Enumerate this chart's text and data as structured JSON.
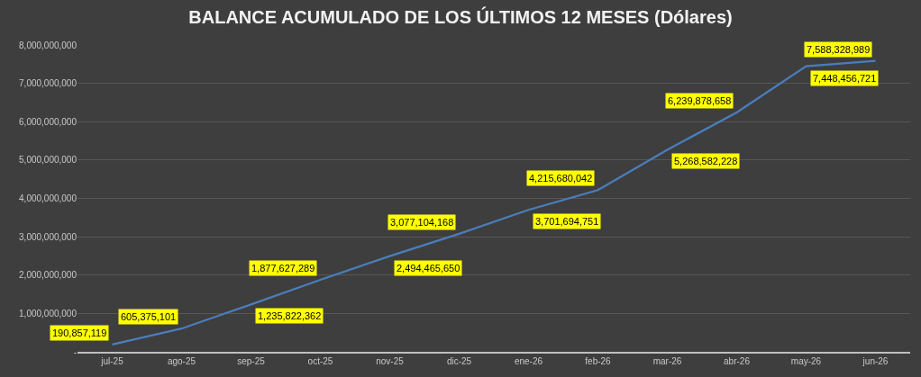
{
  "chart_data": {
    "type": "line",
    "title": "BALANCE ACUMULADO DE LOS ÚLTIMOS 12 MESES (Dólares)",
    "categories": [
      "jul-25",
      "ago-25",
      "sep-25",
      "oct-25",
      "nov-25",
      "dic-25",
      "ene-26",
      "feb-26",
      "mar-26",
      "abr-26",
      "may-26",
      "jun-26"
    ],
    "series": [
      {
        "color": "#4a7ebb",
        "values": [
          190857119,
          605375101,
          1235822362,
          1877627289,
          2494465650,
          3077104168,
          3701694751,
          4215680042,
          5268582228,
          6239878658,
          7448456721,
          7588328989
        ],
        "value_labels": [
          "190,857,119",
          "605,375,101",
          "1,235,822,362",
          "1,877,627,289",
          "2,494,465,650",
          "3,077,104,168",
          "3,701,694,751",
          "4,215,680,042",
          "5,268,582,228",
          "6,239,878,658",
          "7,448,456,721",
          "7,588,328,989"
        ]
      }
    ],
    "ylim": [
      0,
      8000000000
    ],
    "yticks": [
      {
        "value": 0,
        "label": "-"
      },
      {
        "value": 1000000000,
        "label": "1,000,000,000"
      },
      {
        "value": 2000000000,
        "label": "2,000,000,000"
      },
      {
        "value": 3000000000,
        "label": "3,000,000,000"
      },
      {
        "value": 4000000000,
        "label": "4,000,000,000"
      },
      {
        "value": 5000000000,
        "label": "5,000,000,000"
      },
      {
        "value": 6000000000,
        "label": "6,000,000,000"
      },
      {
        "value": 7000000000,
        "label": "7,000,000,000"
      },
      {
        "value": 8000000000,
        "label": "8,000,000,000"
      }
    ],
    "grid": "y",
    "line_style": "solid"
  }
}
